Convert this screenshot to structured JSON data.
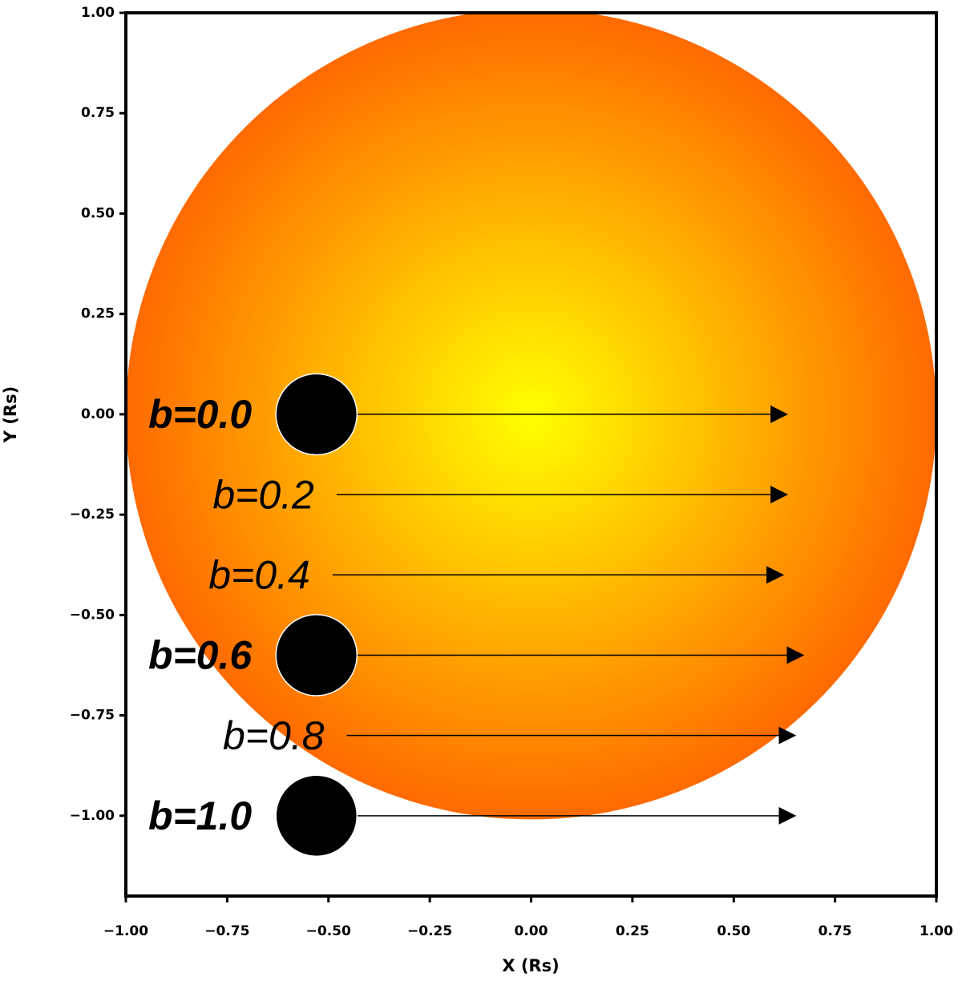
{
  "chart_data": {
    "type": "transit",
    "xlabel": "X (Rs)",
    "ylabel": "Y (Rs)",
    "xlim": [
      -1,
      1
    ],
    "ylim": [
      -1.2,
      1
    ],
    "xticks": [
      {
        "value": -1,
        "label": "−1.00"
      },
      {
        "value": -0.75,
        "label": "−0.75"
      },
      {
        "value": -0.5,
        "label": "−0.50"
      },
      {
        "value": -0.25,
        "label": "−0.25"
      },
      {
        "value": 0,
        "label": "0.00"
      },
      {
        "value": 0.25,
        "label": "0.25"
      },
      {
        "value": 0.5,
        "label": "0.50"
      },
      {
        "value": 0.75,
        "label": "0.75"
      },
      {
        "value": 1,
        "label": "1.00"
      }
    ],
    "yticks": [
      {
        "value": 1,
        "label": "1.00"
      },
      {
        "value": 0.75,
        "label": "0.75"
      },
      {
        "value": 0.5,
        "label": "0.50"
      },
      {
        "value": 0.25,
        "label": "0.25"
      },
      {
        "value": 0,
        "label": "0.00"
      },
      {
        "value": -0.25,
        "label": "−0.25"
      },
      {
        "value": -0.5,
        "label": "−0.50"
      },
      {
        "value": -0.75,
        "label": "−0.75"
      },
      {
        "value": -1,
        "label": "−1.00"
      }
    ],
    "star": {
      "x": 0,
      "y": 0,
      "radius": 1,
      "center_color": "#ffff00",
      "edge_color": "#ff6a00"
    },
    "chords": [
      {
        "label": "b=0.0",
        "y": 0,
        "x_start": -0.5,
        "x_end": 0.63,
        "planet_radius": 0.1,
        "bold": true
      },
      {
        "label": "b=0.2",
        "y": -0.2,
        "x_start": -0.48,
        "x_end": 0.63,
        "planet_radius": null,
        "bold": false
      },
      {
        "label": "b=0.4",
        "y": -0.4,
        "x_start": -0.49,
        "x_end": 0.62,
        "planet_radius": null,
        "bold": false
      },
      {
        "label": "b=0.6",
        "y": -0.6,
        "x_start": -0.5,
        "x_end": 0.67,
        "planet_radius": 0.1,
        "bold": true
      },
      {
        "label": "b=0.8",
        "y": -0.8,
        "x_start": -0.455,
        "x_end": 0.65,
        "planet_radius": null,
        "bold": false
      },
      {
        "label": "b=1.0",
        "y": -1,
        "x_start": -0.5,
        "x_end": 0.65,
        "planet_radius": 0.1,
        "bold": true
      }
    ]
  }
}
